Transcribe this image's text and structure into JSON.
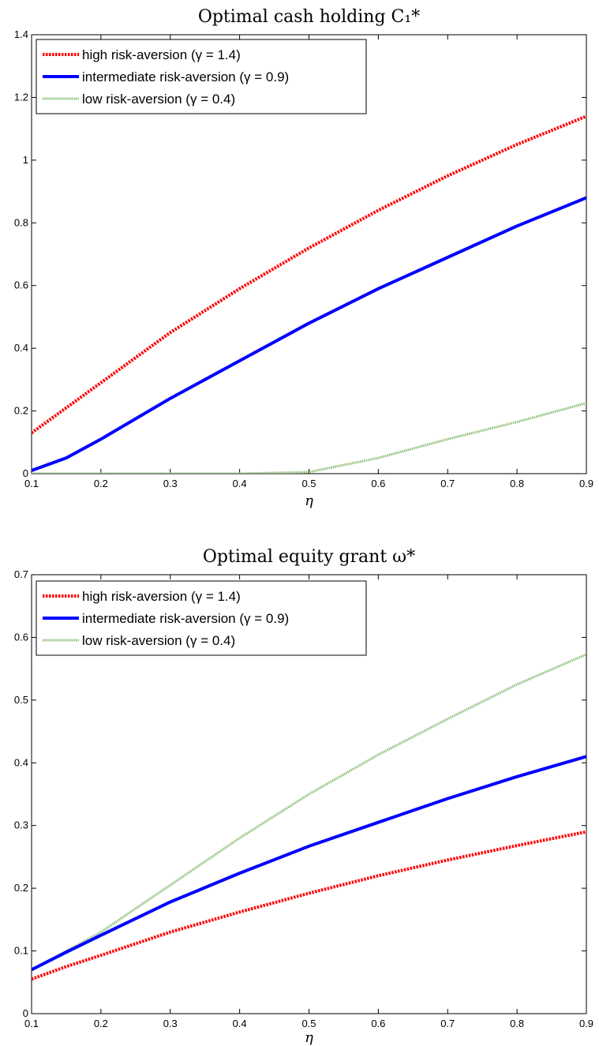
{
  "chart_data": [
    {
      "type": "line",
      "title": "Optimal cash holding C₁*",
      "xlabel": "η",
      "ylabel": "",
      "xlim": [
        0.1,
        0.9
      ],
      "ylim": [
        0,
        1.4
      ],
      "xticks": [
        0.1,
        0.2,
        0.3,
        0.4,
        0.5,
        0.6,
        0.7,
        0.8,
        0.9
      ],
      "yticks": [
        0,
        0.2,
        0.4,
        0.6,
        0.8,
        1,
        1.2,
        1.4
      ],
      "legend_position": "top-left",
      "x": [
        0.1,
        0.15,
        0.2,
        0.3,
        0.4,
        0.5,
        0.6,
        0.7,
        0.8,
        0.9
      ],
      "series": [
        {
          "name": "high risk-aversion (γ = 1.4)",
          "color": "#ff0000",
          "style": "dotted",
          "values": [
            0.13,
            0.21,
            0.29,
            0.45,
            0.59,
            0.72,
            0.84,
            0.95,
            1.05,
            1.14
          ]
        },
        {
          "name": "intermediate risk-aversion (γ = 0.9)",
          "color": "#0000ff",
          "style": "solid",
          "values": [
            0.01,
            0.05,
            0.11,
            0.24,
            0.36,
            0.48,
            0.59,
            0.69,
            0.79,
            0.88
          ]
        },
        {
          "name": "low risk-aversion (γ = 0.4)",
          "color": "#8cbf78",
          "style": "dotted",
          "values": [
            0,
            0,
            0,
            0,
            0,
            0.005,
            0.05,
            0.11,
            0.165,
            0.225
          ]
        }
      ]
    },
    {
      "type": "line",
      "title": "Optimal equity grant ω*",
      "xlabel": "η",
      "ylabel": "",
      "xlim": [
        0.1,
        0.9
      ],
      "ylim": [
        0,
        0.7
      ],
      "xticks": [
        0.1,
        0.2,
        0.3,
        0.4,
        0.5,
        0.6,
        0.7,
        0.8,
        0.9
      ],
      "yticks": [
        0,
        0.1,
        0.2,
        0.3,
        0.4,
        0.5,
        0.6,
        0.7
      ],
      "legend_position": "top-left",
      "x": [
        0.1,
        0.15,
        0.2,
        0.3,
        0.4,
        0.5,
        0.6,
        0.7,
        0.8,
        0.9
      ],
      "series": [
        {
          "name": "high risk-aversion (γ = 1.4)",
          "color": "#ff0000",
          "style": "dotted",
          "values": [
            0.055,
            0.075,
            0.093,
            0.13,
            0.162,
            0.192,
            0.22,
            0.245,
            0.268,
            0.29
          ]
        },
        {
          "name": "intermediate risk-aversion (γ = 0.9)",
          "color": "#0000ff",
          "style": "solid",
          "values": [
            0.07,
            0.098,
            0.125,
            0.178,
            0.224,
            0.267,
            0.305,
            0.343,
            0.378,
            0.41
          ]
        },
        {
          "name": "low risk-aversion (γ = 0.4)",
          "color": "#8cbf78",
          "style": "dotted",
          "values": [
            0.07,
            0.1,
            0.13,
            0.205,
            0.28,
            0.35,
            0.413,
            0.47,
            0.525,
            0.573
          ]
        }
      ]
    }
  ]
}
